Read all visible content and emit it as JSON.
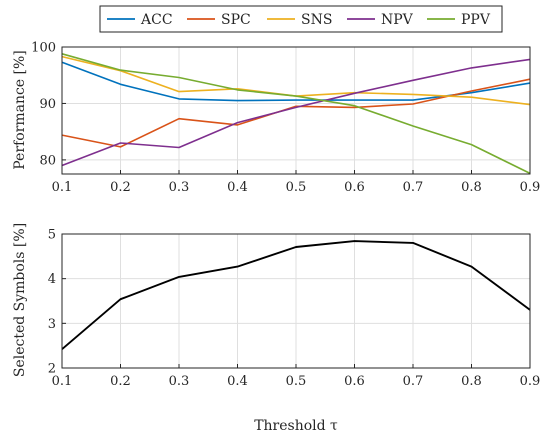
{
  "chart_data": [
    {
      "type": "line",
      "x": [
        0.1,
        0.2,
        0.3,
        0.4,
        0.5,
        0.6,
        0.7,
        0.8,
        0.9
      ],
      "xlabel": "",
      "ylabel": "Performance [%]",
      "xlim": [
        0.1,
        0.9
      ],
      "ylim": [
        77.5,
        100
      ],
      "xticks": [
        "0.1",
        "0.2",
        "0.3",
        "0.4",
        "0.5",
        "0.6",
        "0.7",
        "0.8",
        "0.9"
      ],
      "yticks": [
        80,
        90,
        100
      ],
      "grid": true,
      "legend_position": "top",
      "series": [
        {
          "name": "ACC",
          "color": "#0072BD",
          "values": [
            97.3,
            93.4,
            90.8,
            90.5,
            90.6,
            90.6,
            90.6,
            91.9,
            93.6
          ]
        },
        {
          "name": "SPC",
          "color": "#D95319",
          "values": [
            84.4,
            82.3,
            87.3,
            86.2,
            89.5,
            89.3,
            89.9,
            92.2,
            94.3
          ]
        },
        {
          "name": "SNS",
          "color": "#EDB120",
          "values": [
            98.3,
            95.8,
            92.1,
            92.6,
            91.3,
            91.9,
            91.6,
            91.1,
            89.8
          ]
        },
        {
          "name": "NPV",
          "color": "#7E2F8E",
          "values": [
            79.0,
            83.0,
            82.2,
            86.6,
            89.3,
            91.8,
            94.1,
            96.3,
            97.8
          ]
        },
        {
          "name": "PPV",
          "color": "#77AC30",
          "values": [
            98.8,
            95.9,
            94.6,
            92.4,
            91.3,
            89.6,
            86.0,
            82.7,
            77.6
          ]
        }
      ]
    },
    {
      "type": "line",
      "x": [
        0.1,
        0.2,
        0.3,
        0.4,
        0.5,
        0.6,
        0.7,
        0.8,
        0.9
      ],
      "xlabel": "Threshold τ",
      "ylabel": "Selected Symbols [%]",
      "xlim": [
        0.1,
        0.9
      ],
      "ylim": [
        2,
        5
      ],
      "xticks": [
        "0.1",
        "0.2",
        "0.3",
        "0.4",
        "0.5",
        "0.6",
        "0.7",
        "0.8",
        "0.9"
      ],
      "yticks": [
        2,
        3,
        4,
        5
      ],
      "grid": true,
      "series": [
        {
          "color": "#000000",
          "values": [
            2.42,
            3.54,
            4.04,
            4.27,
            4.71,
            4.84,
            4.8,
            4.27,
            3.3
          ]
        }
      ]
    }
  ]
}
